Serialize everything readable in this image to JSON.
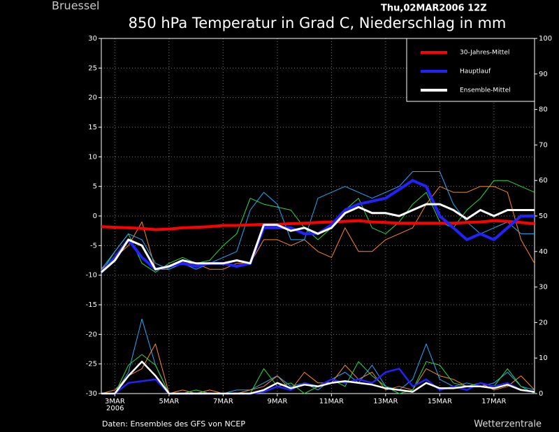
{
  "chart_data": {
    "type": "line",
    "location": "Bruessel",
    "run": "Thu,02MAR2006 12Z",
    "title": "850 hPa Temperatur in Grad C, Niederschlag in mm",
    "source": "Daten: Ensembles des GFS von NCEP",
    "credit": "Wetterzentrale",
    "x_year": "2006",
    "x": [
      2.5,
      3,
      3.5,
      4,
      4.5,
      5,
      5.5,
      6,
      6.5,
      7,
      7.5,
      8,
      8.5,
      9,
      9.5,
      10,
      10.5,
      11,
      11.5,
      12,
      12.5,
      13,
      13.5,
      14,
      14.5,
      15,
      15.5,
      16,
      16.5,
      17,
      17.5,
      18,
      18.5
    ],
    "xlim": [
      2.5,
      18.5
    ],
    "xticks": [
      {
        "value": 3,
        "label": "3MAR"
      },
      {
        "value": 5,
        "label": "5MAR"
      },
      {
        "value": 7,
        "label": "7MAR"
      },
      {
        "value": 9,
        "label": "9MAR"
      },
      {
        "value": 11,
        "label": "11MAR"
      },
      {
        "value": 13,
        "label": "13MAR"
      },
      {
        "value": 15,
        "label": "15MAR"
      },
      {
        "value": 17,
        "label": "17MAR"
      }
    ],
    "ylim": [
      -30,
      30
    ],
    "yticks": [
      -30,
      -25,
      -20,
      -15,
      -10,
      -5,
      0,
      5,
      10,
      15,
      20,
      25,
      30
    ],
    "y2lim": [
      0,
      100
    ],
    "y2ticks": [
      0,
      10,
      20,
      30,
      40,
      50,
      60,
      70,
      80,
      90,
      100
    ],
    "grid": true,
    "legend": "upper right",
    "series": [
      {
        "name": "30-Jahres-Mittel",
        "color": "#ff0000",
        "values": [
          -1.8,
          -1.9,
          -2,
          -2.1,
          -2.3,
          -2.2,
          -2,
          -1.9,
          -1.8,
          -1.6,
          -1.6,
          -1.5,
          -1.4,
          -1.4,
          -1.3,
          -1.2,
          -1.1,
          -1,
          -0.9,
          -0.8,
          -1,
          -1.1,
          -1.2,
          -1.2,
          -1.2,
          -1.2,
          -1.2,
          -1.1,
          -1,
          -0.8,
          -0.9,
          -1.1,
          -1.3
        ]
      },
      {
        "name": "Hauptlauf",
        "color": "#2222ff",
        "values": [
          -9.5,
          -7,
          -4,
          -7,
          -9,
          -8.5,
          -8,
          -8.5,
          -8,
          -8,
          -8.5,
          -8,
          -2,
          -2,
          -2,
          -3,
          -3,
          -1.5,
          1,
          2,
          2.5,
          3,
          4.5,
          6,
          5,
          0,
          -2,
          -4,
          -3,
          -4,
          -2,
          0,
          0
        ]
      },
      {
        "name": "Ensemble-Mittel",
        "color": "#ffffff",
        "values": [
          -9.5,
          -7.5,
          -4,
          -5,
          -9,
          -8.5,
          -7.5,
          -8,
          -8,
          -8,
          -7.5,
          -8,
          -1.5,
          -1.5,
          -2.5,
          -2,
          -3,
          -2,
          0.5,
          1.5,
          0.5,
          0.5,
          0,
          1,
          2,
          2,
          1,
          -0.5,
          1,
          0,
          1,
          1,
          1
        ]
      },
      {
        "color": "#22dd44",
        "values": [
          -9.5,
          -6,
          -3,
          -8,
          -9.5,
          -8,
          -7,
          -8,
          -7.5,
          -5,
          -3,
          3,
          2,
          1.5,
          1,
          -2,
          -4,
          -2,
          1,
          3,
          -2,
          -3,
          -1,
          2,
          4,
          -1,
          -2,
          1,
          3,
          6,
          6,
          5,
          4
        ]
      },
      {
        "color": "#ff8822",
        "values": [
          -9,
          -7,
          -5,
          -1,
          -9,
          -9,
          -8,
          -8,
          -9,
          -9,
          -8,
          -8,
          -4,
          -4,
          -5,
          -4,
          -6,
          -7,
          -2,
          -6,
          -6,
          -4,
          -3,
          -2,
          2,
          5,
          4,
          4,
          5,
          5,
          4,
          -4,
          -8
        ]
      },
      {
        "color": "#22aaff",
        "values": [
          -9,
          -6,
          -3,
          -4,
          -8,
          -9,
          -8,
          -9,
          -8,
          -7,
          -6,
          1,
          4,
          2,
          -4,
          -4,
          3,
          4,
          5,
          4,
          3,
          4,
          5,
          7.5,
          7.5,
          7.5,
          2,
          -1,
          -3,
          -2,
          -1,
          -3,
          -3
        ]
      },
      {
        "color": "#22aaff",
        "axis": "y2",
        "values": [
          0,
          0,
          6,
          21,
          8,
          0,
          0,
          0,
          0,
          0,
          1,
          1,
          3,
          5,
          2,
          3,
          1,
          4,
          6,
          3,
          8,
          2,
          1,
          4,
          14,
          4,
          2,
          3,
          2,
          3,
          6,
          2,
          1
        ]
      },
      {
        "color": "#ff8822",
        "axis": "y2",
        "values": [
          0,
          1,
          5,
          7,
          14,
          0,
          1,
          0,
          1,
          0,
          0,
          1,
          2,
          5,
          1,
          6,
          3,
          3,
          8,
          4,
          6,
          1,
          2,
          1,
          7,
          5,
          4,
          2,
          3,
          1,
          2,
          5,
          1
        ]
      },
      {
        "color": "#22dd44",
        "axis": "y2",
        "values": [
          0,
          0,
          8,
          11,
          8,
          0,
          0,
          1,
          0,
          0,
          0,
          0,
          7,
          2,
          3,
          0,
          2,
          4,
          2,
          9,
          5,
          2,
          0,
          1,
          9,
          8,
          3,
          2,
          3,
          2,
          7,
          2,
          0
        ]
      },
      {
        "color": "#2222ff",
        "axis": "y2",
        "values": [
          0,
          0,
          3,
          3.5,
          4,
          0,
          0,
          0,
          0,
          0,
          0,
          0,
          0.5,
          2,
          1,
          3,
          2,
          4,
          3,
          4,
          3,
          6,
          7,
          2,
          4,
          1,
          2,
          1,
          3,
          2,
          3,
          1,
          0.5
        ]
      },
      {
        "color": "#ffffff",
        "axis": "y2",
        "values": [
          0,
          0,
          5,
          9,
          5,
          0,
          0,
          0,
          0,
          0,
          0,
          0,
          1,
          3,
          1.5,
          2.5,
          2,
          3,
          3.5,
          3,
          2.5,
          1.5,
          1,
          0.5,
          3,
          1.5,
          1.5,
          2,
          2,
          1.5,
          2.5,
          1,
          0.5
        ]
      }
    ]
  }
}
